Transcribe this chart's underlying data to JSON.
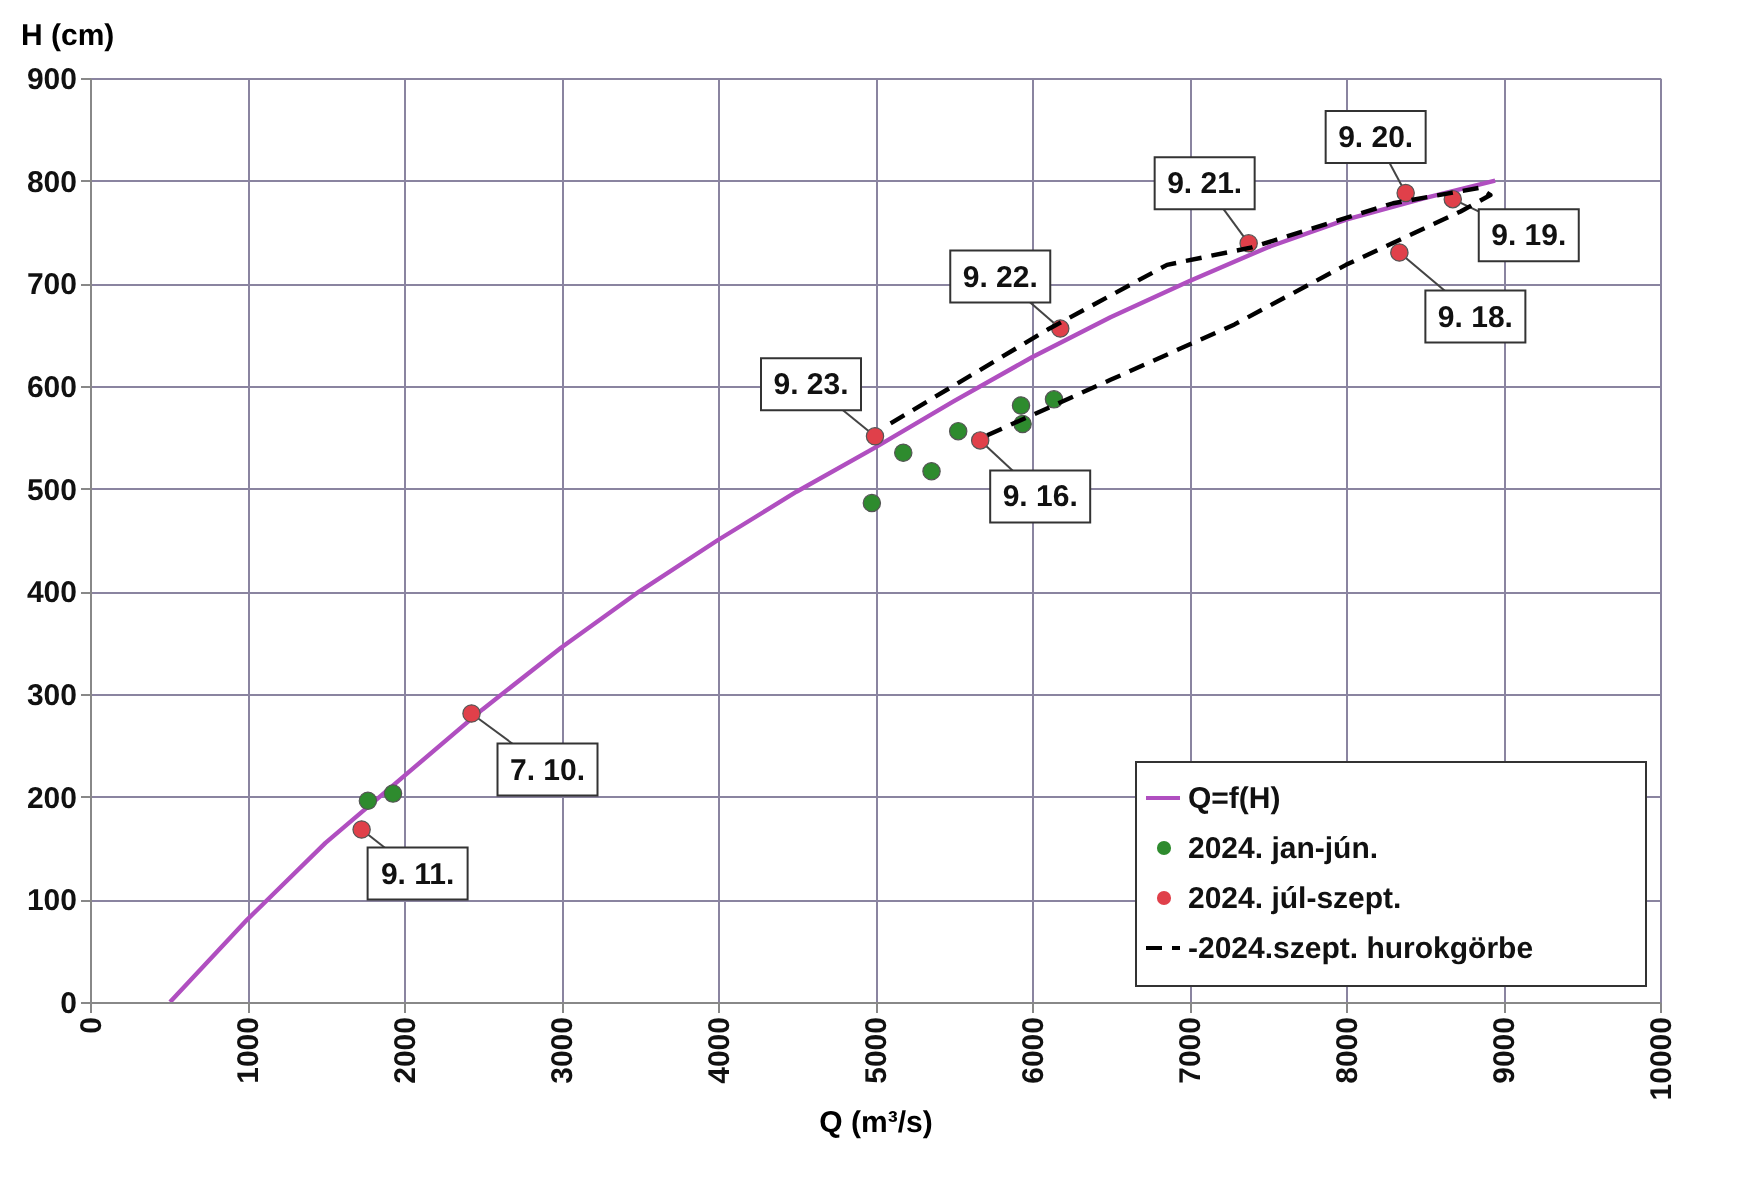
{
  "chart_data": {
    "type": "scatter",
    "xlabel": "Q (m³/s)",
    "ylabel": "H (cm)",
    "xlim": [
      0,
      10000
    ],
    "xticks": [
      0,
      1000,
      2000,
      3000,
      4000,
      5000,
      6000,
      7000,
      8000,
      9000,
      10000
    ],
    "ylim": [
      0,
      900
    ],
    "yticks": [
      0,
      100,
      200,
      300,
      400,
      500,
      600,
      700,
      800,
      900
    ],
    "grid": true,
    "legend": "bottom right",
    "series": [
      {
        "name": "Q=f(H)",
        "type": "line",
        "color": "#b04fc0",
        "line_style": "solid",
        "x": [
          510,
          1000,
          1500,
          2000,
          2500,
          3000,
          3500,
          4000,
          4500,
          5000,
          5500,
          6000,
          6500,
          7000,
          7500,
          8000,
          8500,
          8950
        ],
        "values": [
          0,
          80,
          155,
          220,
          285,
          345,
          400,
          450,
          497,
          540,
          585,
          628,
          667,
          702,
          735,
          762,
          783,
          800
        ]
      },
      {
        "name": "2024. jan-jún.",
        "marker": "circle",
        "color": "#2e8b2e",
        "x": [
          1770,
          1930,
          4980,
          5180,
          5360,
          5530,
          5930,
          5940,
          6140
        ],
        "values": [
          196,
          203,
          486,
          535,
          517,
          556,
          581,
          563,
          587
        ]
      },
      {
        "name": "2024. júl-szept.",
        "marker": "circle",
        "color": "#e0404a",
        "x": [
          1730,
          2430,
          5000,
          5670,
          6180,
          7380,
          8380,
          8680,
          8340
        ],
        "values": [
          168,
          281,
          551,
          547,
          656,
          739,
          788,
          782,
          730
        ]
      },
      {
        "name": "-2024.szept. hurokgörbe",
        "type": "line",
        "color": "#000000",
        "line_style": "dashed",
        "x": [
          5715,
          6500,
          7290,
          8000,
          8730,
          8920,
          8850,
          8300,
          7400,
          6860,
          6100,
          5060
        ],
        "values": [
          552,
          606,
          660,
          718,
          770,
          786,
          793,
          778,
          735,
          718,
          655,
          560
        ]
      }
    ],
    "annotations": [
      {
        "text": "9. 11.",
        "x": 1730,
        "y": 168
      },
      {
        "text": "7. 10.",
        "x": 2430,
        "y": 281
      },
      {
        "text": "9. 23.",
        "x": 5000,
        "y": 551
      },
      {
        "text": "9. 16.",
        "x": 5670,
        "y": 547
      },
      {
        "text": "9. 22.",
        "x": 6180,
        "y": 656
      },
      {
        "text": "9. 21.",
        "x": 7380,
        "y": 739
      },
      {
        "text": "9. 20.",
        "x": 8380,
        "y": 788
      },
      {
        "text": "9. 19.",
        "x": 8680,
        "y": 782
      },
      {
        "text": "9. 18.",
        "x": 8340,
        "y": 730
      }
    ]
  }
}
